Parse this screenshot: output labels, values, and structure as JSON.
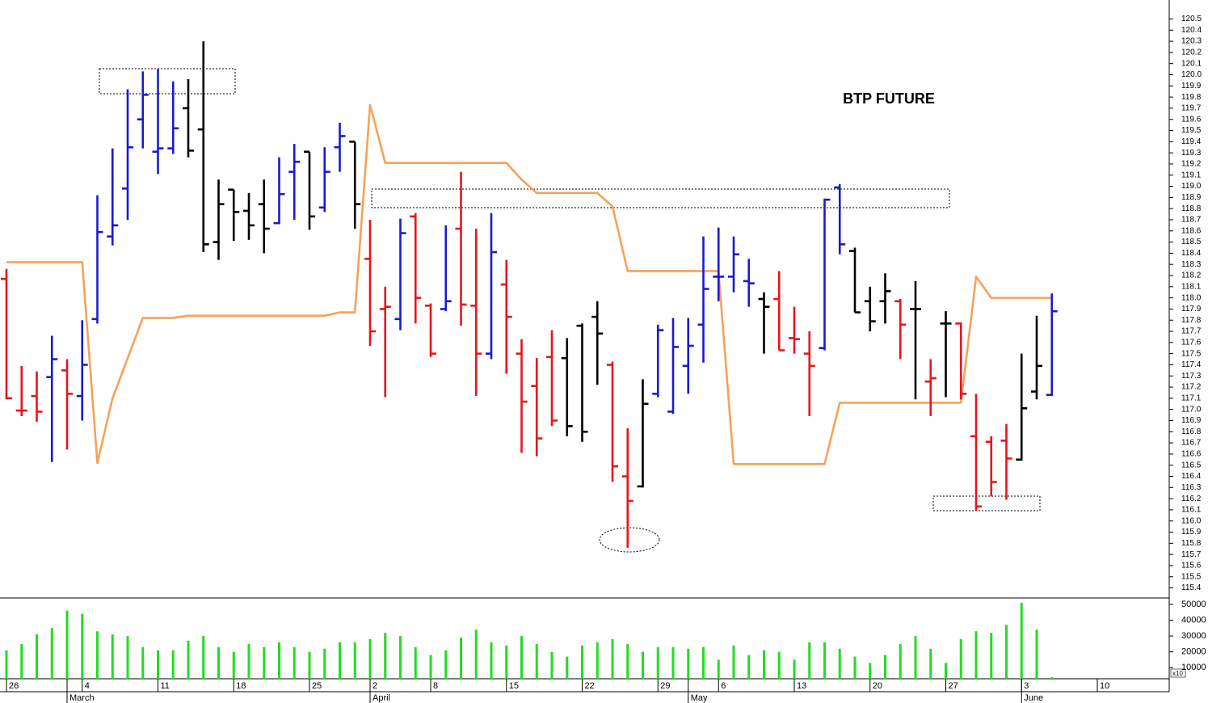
{
  "chart_data": {
    "type": "ohlc",
    "title": "BTP FUTURE",
    "categories": [
      "26",
      null,
      null,
      null,
      null,
      "4",
      null,
      null,
      null,
      null,
      "11",
      null,
      null,
      null,
      null,
      "18",
      null,
      null,
      null,
      null,
      "25",
      null,
      null,
      null,
      "2",
      null,
      null,
      null,
      "8",
      null,
      null,
      null,
      null,
      "15",
      null,
      null,
      null,
      null,
      "22",
      null,
      null,
      null,
      null,
      "29",
      null,
      null,
      null,
      "6",
      null,
      null,
      null,
      null,
      "13",
      null,
      null,
      null,
      null,
      "20",
      null,
      null,
      null,
      null,
      "27",
      null,
      null,
      null,
      null,
      "3",
      null,
      null,
      null,
      null,
      "10"
    ],
    "months": [
      null,
      null,
      null,
      null,
      "March",
      null,
      null,
      null,
      null,
      null,
      null,
      null,
      null,
      null,
      null,
      null,
      null,
      null,
      null,
      null,
      null,
      null,
      null,
      null,
      "April",
      null,
      null,
      null,
      null,
      null,
      null,
      null,
      null,
      null,
      null,
      null,
      null,
      null,
      null,
      null,
      null,
      null,
      null,
      null,
      null,
      "May",
      null,
      null,
      null,
      null,
      null,
      null,
      null,
      null,
      null,
      null,
      null,
      null,
      null,
      null,
      null,
      null,
      null,
      null,
      null,
      null,
      null,
      "June",
      null,
      null,
      null,
      null,
      null
    ],
    "open": [
      118.17,
      116.99,
      117.12,
      117.29,
      117.35,
      117.12,
      117.81,
      118.55,
      118.98,
      119.6,
      119.31,
      119.34,
      119.7,
      119.51,
      118.5,
      118.97,
      118.78,
      118.84,
      118.67,
      119.13,
      119.31,
      118.81,
      119.35,
      119.4,
      118.35,
      117.9,
      117.81,
      118.73,
      117.93,
      117.9,
      118.62,
      117.93,
      117.5,
      118.12,
      117.5,
      117.21,
      117.47,
      117.46,
      117.75,
      117.83,
      117.4,
      116.4,
      116.31,
      117.14,
      116.98,
      117.39,
      117.76,
      118.19,
      118.19,
      118.15,
      117.99,
      117.99,
      117.64,
      117.5,
      117.55,
      118.99,
      118.42,
      117.97,
      117.97,
      117.97,
      117.9,
      117.25,
      117.77,
      117.77,
      116.76,
      116.71,
      116.72,
      116.55,
      117.16,
      117.13,
      null,
      null,
      null
    ],
    "high": [
      118.26,
      117.39,
      117.34,
      117.66,
      117.45,
      117.8,
      118.92,
      119.34,
      119.87,
      120.03,
      120.05,
      119.94,
      119.96,
      120.3,
      119.06,
      118.97,
      118.94,
      119.06,
      119.26,
      119.38,
      119.31,
      119.35,
      119.57,
      119.4,
      118.7,
      118.1,
      118.71,
      118.76,
      117.95,
      118.65,
      119.13,
      118.62,
      118.76,
      118.34,
      117.63,
      117.46,
      117.71,
      117.64,
      117.77,
      117.97,
      117.43,
      116.83,
      117.27,
      117.76,
      117.82,
      117.82,
      118.55,
      118.63,
      118.55,
      118.35,
      118.05,
      118.24,
      117.92,
      117.7,
      118.89,
      119.02,
      118.45,
      118.1,
      118.22,
      117.99,
      118.15,
      117.45,
      117.88,
      117.78,
      117.14,
      116.76,
      116.87,
      117.5,
      117.84,
      118.04,
      null,
      null,
      null
    ],
    "low": [
      117.09,
      116.94,
      116.89,
      116.53,
      116.64,
      116.9,
      117.77,
      118.47,
      118.7,
      119.34,
      119.11,
      119.29,
      119.26,
      118.41,
      118.34,
      118.51,
      118.52,
      118.4,
      118.66,
      118.7,
      118.61,
      118.77,
      119.13,
      118.62,
      117.57,
      117.11,
      117.71,
      117.77,
      117.47,
      117.88,
      117.75,
      117.12,
      117.45,
      117.32,
      116.61,
      116.58,
      116.85,
      116.76,
      116.71,
      117.22,
      116.35,
      115.76,
      116.3,
      117.11,
      116.96,
      117.14,
      117.42,
      117.97,
      118.05,
      117.92,
      117.5,
      117.53,
      117.5,
      116.94,
      117.53,
      118.39,
      117.87,
      117.7,
      117.77,
      117.45,
      117.09,
      116.94,
      117.11,
      117.09,
      116.09,
      116.22,
      116.19,
      116.54,
      117.09,
      117.12,
      null,
      null,
      null
    ],
    "close": [
      117.1,
      116.99,
      116.98,
      117.45,
      117.14,
      117.4,
      118.59,
      118.65,
      119.35,
      119.82,
      119.34,
      119.52,
      119.32,
      118.48,
      118.84,
      118.77,
      118.65,
      118.62,
      118.93,
      119.22,
      118.73,
      119.13,
      119.45,
      118.84,
      117.7,
      117.92,
      118.58,
      118.0,
      117.5,
      117.97,
      117.94,
      117.5,
      118.41,
      117.83,
      117.07,
      116.74,
      116.9,
      116.85,
      116.8,
      117.68,
      116.49,
      116.18,
      117.05,
      117.71,
      117.56,
      117.57,
      118.08,
      118.19,
      118.39,
      118.13,
      117.92,
      117.53,
      117.63,
      117.39,
      118.88,
      118.48,
      117.87,
      117.79,
      118.06,
      117.76,
      117.9,
      117.28,
      117.77,
      117.14,
      116.13,
      116.35,
      116.56,
      117.01,
      117.39,
      117.88,
      null,
      null,
      null
    ],
    "bar_colors": [
      "#e8141c",
      "#e8141c",
      "#e8141c",
      "#1a1ad0",
      "#e8141c",
      "#1a1ad0",
      "#1a1ad0",
      "#1a1ad0",
      "#1a1ad0",
      "#1a1ad0",
      "#1a1ad0",
      "#1a1ad0",
      "#000000",
      "#000000",
      "#000000",
      "#000000",
      "#000000",
      "#000000",
      "#1a1ad0",
      "#1a1ad0",
      "#000000",
      "#1a1ad0",
      "#1a1ad0",
      "#000000",
      "#e8141c",
      "#e8141c",
      "#1a1ad0",
      "#e8141c",
      "#e8141c",
      "#1a1ad0",
      "#e8141c",
      "#e8141c",
      "#1a1ad0",
      "#e8141c",
      "#e8141c",
      "#e8141c",
      "#e8141c",
      "#000000",
      "#000000",
      "#000000",
      "#e8141c",
      "#e8141c",
      "#000000",
      "#1a1ad0",
      "#1a1ad0",
      "#1a1ad0",
      "#1a1ad0",
      "#1a1ad0",
      "#1a1ad0",
      "#1a1ad0",
      "#000000",
      "#e8141c",
      "#e8141c",
      "#e8141c",
      "#1a1ad0",
      "#1a1ad0",
      "#000000",
      "#000000",
      "#000000",
      "#e8141c",
      "#000000",
      "#e8141c",
      "#000000",
      "#e8141c",
      "#e8141c",
      "#e8141c",
      "#e8141c",
      "#000000",
      "#000000",
      "#1a1ad0",
      null,
      null,
      null
    ],
    "overlay": {
      "color": "#f5a25a",
      "values": [
        118.32,
        118.32,
        118.32,
        118.32,
        118.32,
        118.32,
        116.52,
        117.1,
        117.46,
        117.82,
        117.82,
        117.82,
        117.84,
        117.84,
        117.84,
        117.84,
        117.84,
        117.84,
        117.84,
        117.84,
        117.84,
        117.84,
        117.87,
        117.87,
        119.73,
        119.21,
        119.21,
        119.21,
        119.21,
        119.21,
        119.21,
        119.21,
        119.21,
        119.21,
        119.06,
        118.94,
        118.94,
        118.94,
        118.94,
        118.94,
        118.82,
        118.24,
        118.24,
        118.24,
        118.24,
        118.24,
        118.24,
        118.24,
        116.51,
        116.51,
        116.51,
        116.51,
        116.51,
        116.51,
        116.51,
        117.06,
        117.06,
        117.06,
        117.06,
        117.06,
        117.06,
        117.06,
        117.06,
        117.06,
        118.19,
        118.0,
        118.0,
        118.0,
        118.0,
        118.0,
        null,
        null,
        null
      ]
    },
    "ylim": [
      115.31,
      120.67
    ],
    "yticks": [
      115.4,
      115.5,
      115.6,
      115.7,
      115.8,
      115.9,
      {
        "value": 116,
        "label": "116.0"
      },
      116.1,
      116.2,
      116.3,
      116.4,
      116.5,
      116.6,
      116.7,
      116.8,
      116.9,
      {
        "value": 117,
        "label": "117.0"
      },
      117.1,
      117.2,
      117.3,
      117.4,
      117.5,
      117.6,
      117.7,
      117.8,
      117.9,
      {
        "value": 118,
        "label": "118.0"
      },
      118.1,
      118.2,
      118.3,
      118.4,
      118.5,
      118.6,
      118.7,
      118.8,
      118.9,
      {
        "value": 119,
        "label": "119.0"
      },
      119.1,
      119.2,
      119.3,
      119.4,
      119.5,
      119.6,
      119.7,
      119.8,
      119.9,
      {
        "value": 120,
        "label": "120.0"
      },
      120.1,
      120.2,
      120.3,
      120.4,
      120.5
    ],
    "volume": {
      "color": "#22dd22",
      "unit_label": "x10",
      "values": [
        21000,
        25000,
        31000,
        35000,
        46000,
        44000,
        33000,
        31000,
        30000,
        23000,
        21000,
        21000,
        27000,
        30000,
        23000,
        20000,
        25000,
        23000,
        26000,
        23000,
        20000,
        22000,
        26000,
        26000,
        28000,
        32000,
        30000,
        23000,
        18000,
        21000,
        29000,
        34000,
        26000,
        24000,
        30000,
        25000,
        20000,
        17000,
        24000,
        26000,
        28000,
        25000,
        20000,
        23000,
        23000,
        22000,
        23000,
        15000,
        24000,
        18000,
        21000,
        20000,
        15000,
        26000,
        26000,
        22000,
        17000,
        13000,
        18000,
        25000,
        30000,
        22000,
        13000,
        28000,
        33000,
        32000,
        37000,
        51000,
        34000,
        4000,
        null,
        null,
        null
      ],
      "ylim": [
        3000,
        53000
      ],
      "yticks": [
        10000,
        20000,
        30000,
        40000,
        50000
      ]
    }
  }
}
